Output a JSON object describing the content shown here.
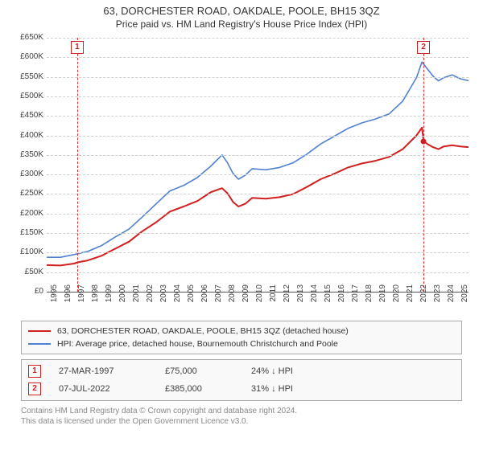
{
  "title1": "63, DORCHESTER ROAD, OAKDALE, POOLE, BH15 3QZ",
  "title2": "Price paid vs. HM Land Registry's House Price Index (HPI)",
  "chart": {
    "type": "line",
    "background_color": "#ffffff",
    "grid_color": "#d0d0d0",
    "axis_color": "#555555",
    "label_fontsize": 10,
    "title_fontsize": 13,
    "subtitle_fontsize": 12,
    "y_axis": {
      "min": 0,
      "max": 650000,
      "step": 50000,
      "ticks": [
        "£0",
        "£50K",
        "£100K",
        "£150K",
        "£200K",
        "£250K",
        "£300K",
        "£350K",
        "£400K",
        "£450K",
        "£500K",
        "£550K",
        "£600K",
        "£650K"
      ]
    },
    "x_axis": {
      "min": 1995,
      "max": 2025.8,
      "ticks": [
        1995,
        1996,
        1997,
        1998,
        1999,
        2000,
        2001,
        2002,
        2003,
        2004,
        2005,
        2006,
        2007,
        2008,
        2009,
        2010,
        2011,
        2012,
        2013,
        2014,
        2015,
        2016,
        2017,
        2018,
        2019,
        2020,
        2021,
        2022,
        2023,
        2024,
        2025
      ]
    },
    "series": [
      {
        "key": "price_paid",
        "label": "63, DORCHESTER ROAD, OAKDALE, POOLE, BH15 3QZ (detached house)",
        "color": "#d02020",
        "line_width": 2,
        "points": [
          [
            1995.0,
            68000
          ],
          [
            1996.0,
            67000
          ],
          [
            1997.0,
            72000
          ],
          [
            1997.25,
            75000
          ],
          [
            1998.0,
            80000
          ],
          [
            1999.0,
            92000
          ],
          [
            2000.0,
            110000
          ],
          [
            2001.0,
            128000
          ],
          [
            2002.0,
            155000
          ],
          [
            2003.0,
            178000
          ],
          [
            2004.0,
            205000
          ],
          [
            2005.0,
            218000
          ],
          [
            2006.0,
            232000
          ],
          [
            2007.0,
            255000
          ],
          [
            2007.8,
            265000
          ],
          [
            2008.2,
            252000
          ],
          [
            2008.6,
            230000
          ],
          [
            2009.0,
            218000
          ],
          [
            2009.5,
            225000
          ],
          [
            2010.0,
            240000
          ],
          [
            2011.0,
            238000
          ],
          [
            2012.0,
            242000
          ],
          [
            2013.0,
            250000
          ],
          [
            2014.0,
            268000
          ],
          [
            2015.0,
            288000
          ],
          [
            2016.0,
            302000
          ],
          [
            2017.0,
            318000
          ],
          [
            2018.0,
            328000
          ],
          [
            2019.0,
            335000
          ],
          [
            2020.0,
            345000
          ],
          [
            2021.0,
            365000
          ],
          [
            2022.0,
            400000
          ],
          [
            2022.4,
            420000
          ],
          [
            2022.52,
            385000
          ],
          [
            2022.8,
            378000
          ],
          [
            2023.2,
            370000
          ],
          [
            2023.6,
            365000
          ],
          [
            2024.0,
            372000
          ],
          [
            2024.6,
            375000
          ],
          [
            2025.2,
            372000
          ],
          [
            2025.8,
            370000
          ]
        ]
      },
      {
        "key": "hpi",
        "label": "HPI: Average price, detached house, Bournemouth Christchurch and Poole",
        "color": "#5080d0",
        "line_width": 1.6,
        "points": [
          [
            1995.0,
            88000
          ],
          [
            1996.0,
            88000
          ],
          [
            1997.0,
            95000
          ],
          [
            1998.0,
            103000
          ],
          [
            1999.0,
            118000
          ],
          [
            2000.0,
            140000
          ],
          [
            2001.0,
            160000
          ],
          [
            2002.0,
            192000
          ],
          [
            2003.0,
            225000
          ],
          [
            2004.0,
            258000
          ],
          [
            2005.0,
            272000
          ],
          [
            2006.0,
            292000
          ],
          [
            2007.0,
            322000
          ],
          [
            2007.8,
            350000
          ],
          [
            2008.2,
            330000
          ],
          [
            2008.6,
            303000
          ],
          [
            2009.0,
            288000
          ],
          [
            2009.5,
            298000
          ],
          [
            2010.0,
            315000
          ],
          [
            2011.0,
            312000
          ],
          [
            2012.0,
            318000
          ],
          [
            2013.0,
            330000
          ],
          [
            2014.0,
            352000
          ],
          [
            2015.0,
            378000
          ],
          [
            2016.0,
            398000
          ],
          [
            2017.0,
            418000
          ],
          [
            2018.0,
            432000
          ],
          [
            2019.0,
            442000
          ],
          [
            2020.0,
            455000
          ],
          [
            2021.0,
            488000
          ],
          [
            2022.0,
            548000
          ],
          [
            2022.4,
            588000
          ],
          [
            2022.8,
            570000
          ],
          [
            2023.2,
            552000
          ],
          [
            2023.6,
            540000
          ],
          [
            2024.0,
            548000
          ],
          [
            2024.6,
            555000
          ],
          [
            2025.2,
            545000
          ],
          [
            2025.8,
            540000
          ]
        ]
      }
    ],
    "sale_markers": [
      {
        "idx": "1",
        "year": 1997.23
      },
      {
        "idx": "2",
        "year": 2022.52
      }
    ],
    "sale_point": {
      "year": 2022.52,
      "value": 385000,
      "color": "#d02020"
    }
  },
  "legend": [
    {
      "color": "#d02020",
      "text": "63, DORCHESTER ROAD, OAKDALE, POOLE, BH15 3QZ (detached house)"
    },
    {
      "color": "#5080d0",
      "text": "HPI: Average price, detached house, Bournemouth Christchurch and Poole"
    }
  ],
  "sales": [
    {
      "idx": "1",
      "date": "27-MAR-1997",
      "price": "£75,000",
      "delta": "24% ↓ HPI"
    },
    {
      "idx": "2",
      "date": "07-JUL-2022",
      "price": "£385,000",
      "delta": "31% ↓ HPI"
    }
  ],
  "footer1": "Contains HM Land Registry data © Crown copyright and database right 2024.",
  "footer2": "This data is licensed under the Open Government Licence v3.0."
}
